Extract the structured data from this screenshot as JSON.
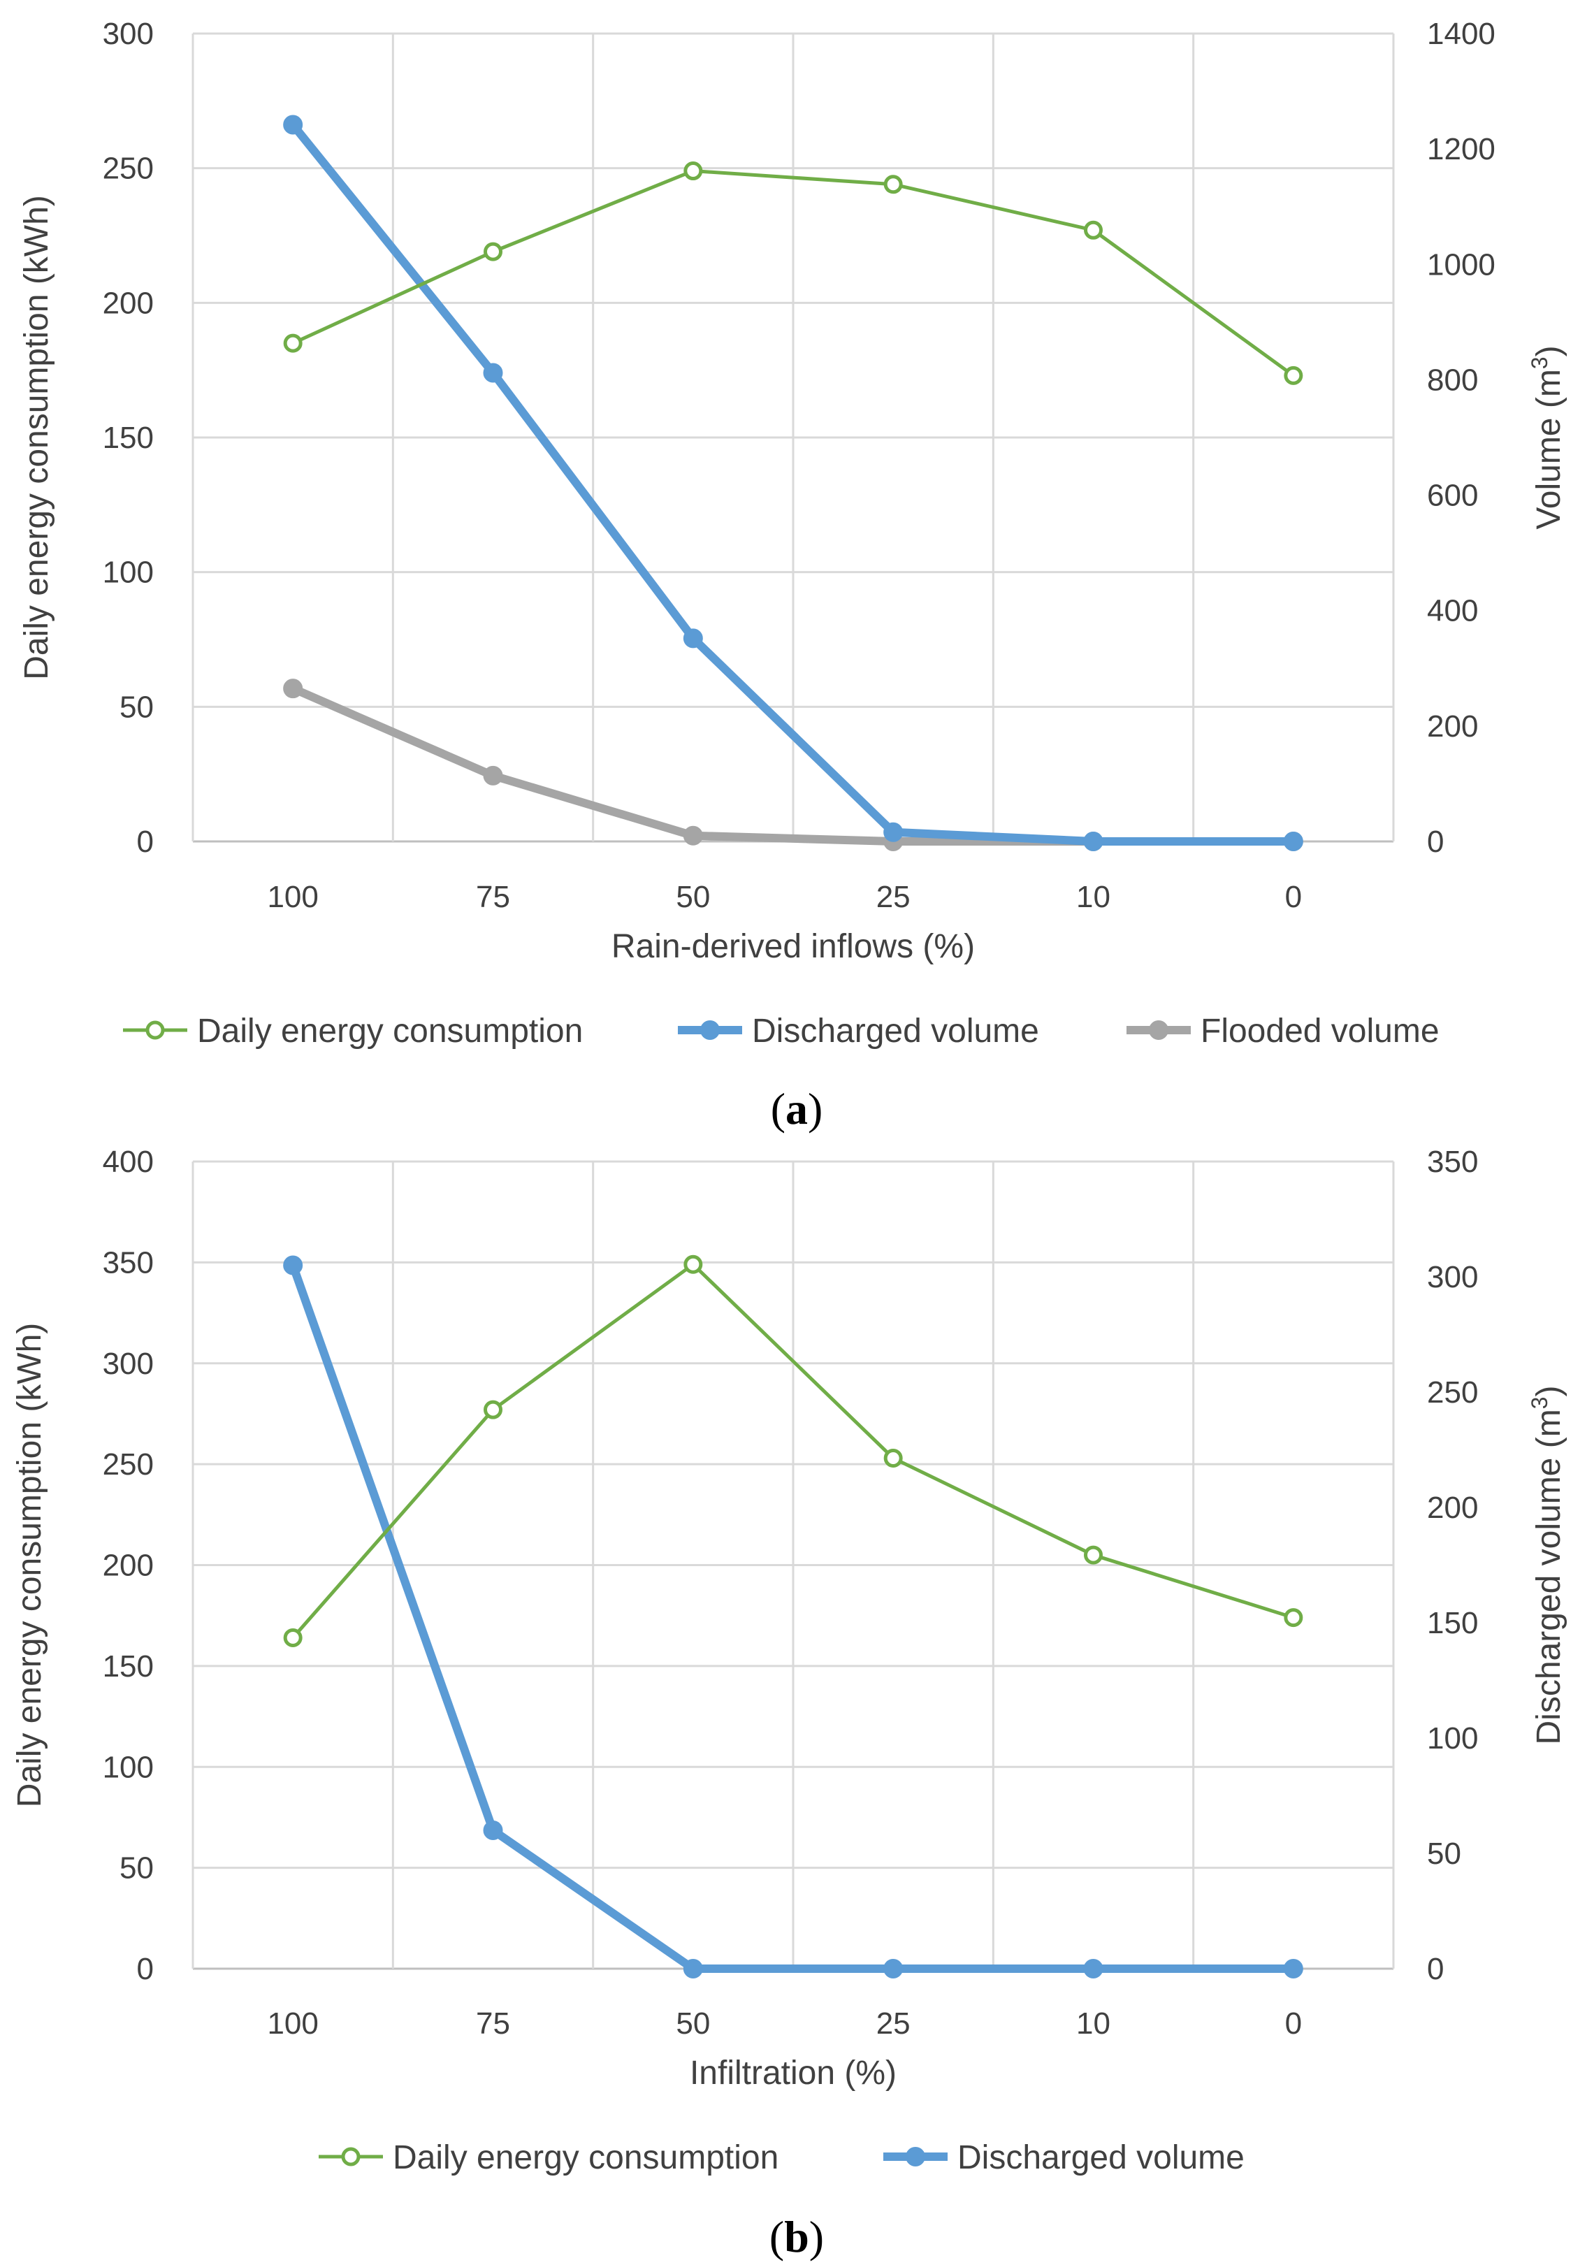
{
  "colors": {
    "energy": "#70AD47",
    "discharged": "#5B9BD5",
    "flooded": "#A5A5A5",
    "grid": "#D9D9D9",
    "text": "#404040"
  },
  "chart_data": [
    {
      "type": "line",
      "caption_open": "(",
      "caption_letter": "a",
      "caption_close": ")",
      "xlabel": "Rain-derived inflows (%)",
      "categories": [
        "100",
        "75",
        "50",
        "25",
        "10",
        "0"
      ],
      "y_left": {
        "label": "Daily energy consumption (kWh)",
        "lim": [
          0,
          300
        ],
        "ticks": [
          "0",
          "50",
          "100",
          "150",
          "200",
          "250",
          "300"
        ]
      },
      "y_right": {
        "label": "Volume (m³)",
        "label_main": "Volume (m",
        "label_sup": "3",
        "label_close": ")",
        "lim": [
          0,
          1400
        ],
        "ticks": [
          "0",
          "200",
          "400",
          "600",
          "800",
          "1000",
          "1200",
          "1400"
        ]
      },
      "legend": [
        "Daily energy consumption",
        "Discharged volume",
        "Flooded volume"
      ],
      "series": [
        {
          "name": "Daily energy consumption",
          "axis": "left",
          "values": [
            185,
            219,
            249,
            244,
            227,
            173
          ]
        },
        {
          "name": "Discharged volume",
          "axis": "right",
          "values": [
            1242,
            812,
            352,
            16,
            0,
            0
          ]
        },
        {
          "name": "Flooded volume",
          "axis": "right",
          "values": [
            265,
            114,
            10,
            0,
            0,
            0
          ]
        }
      ]
    },
    {
      "type": "line",
      "caption_open": "(",
      "caption_letter": "b",
      "caption_close": ")",
      "xlabel": "Infiltration (%)",
      "categories": [
        "100",
        "75",
        "50",
        "25",
        "10",
        "0"
      ],
      "y_left": {
        "label": "Daily energy consumption (kWh)",
        "lim": [
          0,
          400
        ],
        "ticks": [
          "0",
          "50",
          "100",
          "150",
          "200",
          "250",
          "300",
          "350",
          "400"
        ]
      },
      "y_right": {
        "label": "Discharged volume (m³)",
        "label_main": "Discharged volume (m",
        "label_sup": "3",
        "label_close": ")",
        "lim": [
          0,
          350
        ],
        "ticks": [
          "0",
          "50",
          "100",
          "150",
          "200",
          "250",
          "300",
          "350"
        ]
      },
      "legend": [
        "Daily energy consumption",
        "Discharged volume"
      ],
      "series": [
        {
          "name": "Daily energy consumption",
          "axis": "left",
          "values": [
            164,
            277,
            349,
            253,
            205,
            174
          ]
        },
        {
          "name": "Discharged volume",
          "axis": "right",
          "values": [
            305,
            60,
            0,
            0,
            0,
            0
          ]
        }
      ]
    }
  ]
}
